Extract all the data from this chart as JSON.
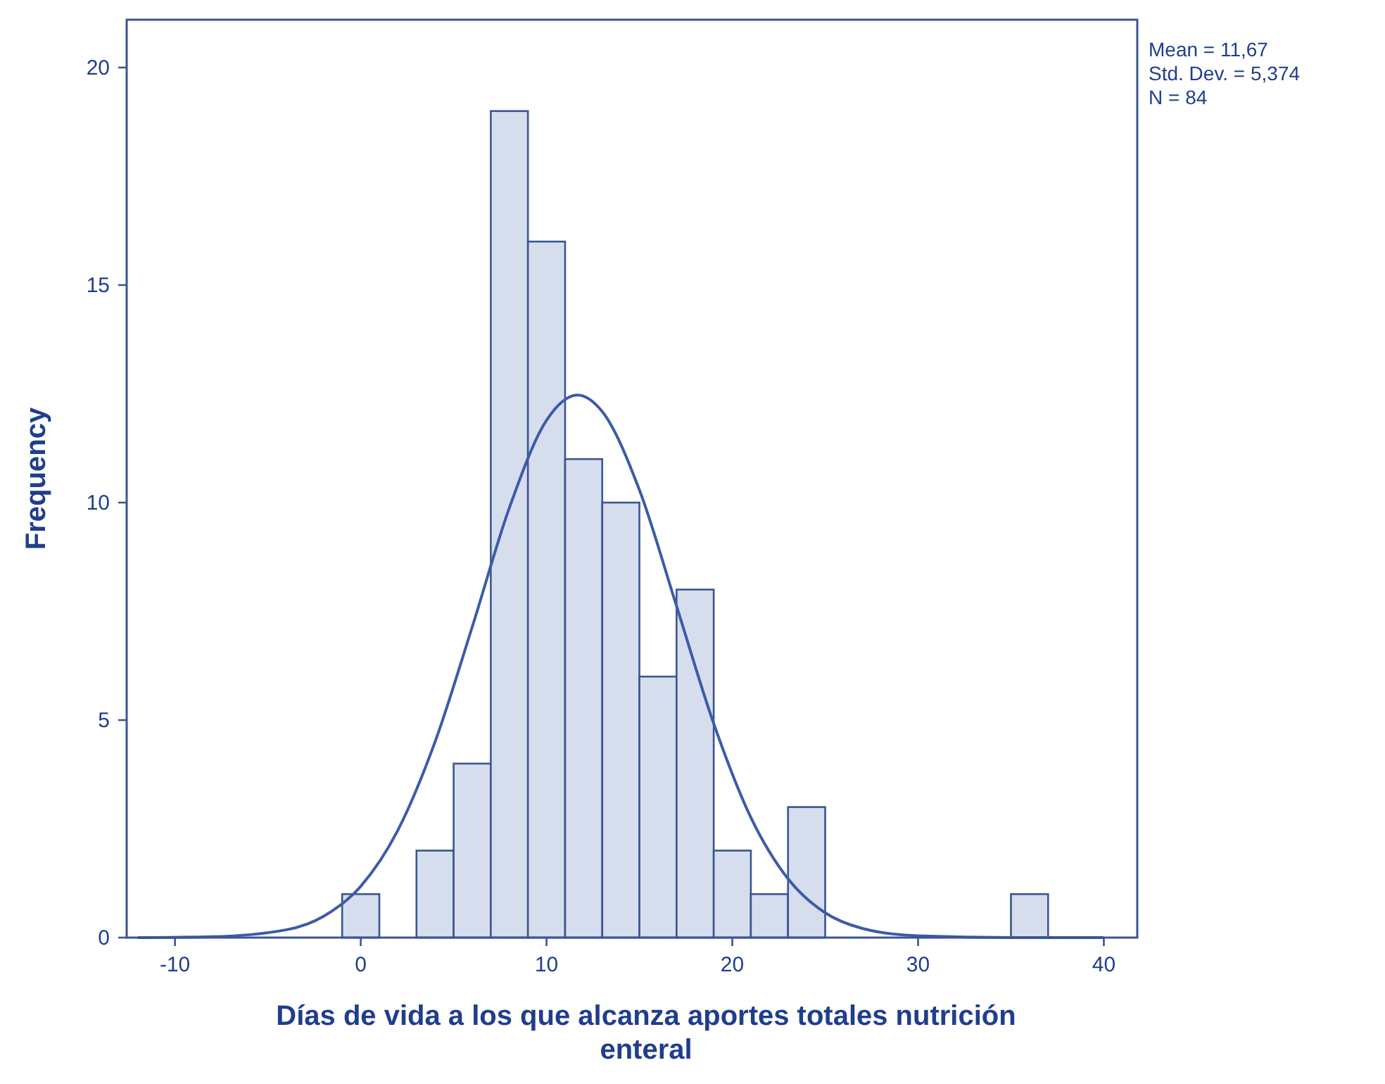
{
  "chart_data": {
    "type": "histogram",
    "xlabel": "Días de vida a los que alcanza aportes totales nutrición enteral",
    "ylabel": "Frequency",
    "annotations": [
      "Mean = 11,67",
      "Std. Dev. = 5,374",
      "N = 84"
    ],
    "bins": [
      -1,
      1,
      3,
      5,
      7,
      9,
      11,
      13,
      15,
      17,
      19,
      21,
      23,
      25,
      27,
      29,
      31,
      33,
      35,
      37
    ],
    "series": [
      {
        "color": "#d6deee",
        "values": [
          1,
          0,
          2,
          4,
          19,
          16,
          11,
          10,
          6,
          8,
          2,
          1,
          3,
          0,
          0,
          0,
          0,
          0,
          1
        ]
      },
      {
        "type": "line",
        "color": "#3d5ba6",
        "x": [
          -12,
          -8,
          -4,
          -2,
          0,
          2,
          4,
          6,
          8,
          10,
          11.67,
          13,
          15,
          17,
          19,
          21,
          23,
          25,
          27,
          30,
          35,
          40
        ],
        "values": [
          0,
          0.02,
          0.18,
          0.49,
          1.18,
          2.47,
          4.5,
          7.14,
          9.88,
          11.89,
          12.47,
          12.09,
          10.29,
          7.62,
          4.92,
          2.76,
          1.35,
          0.57,
          0.21,
          0.04,
          0,
          0
        ]
      }
    ],
    "xlim": [
      -12.6,
      41.8
    ],
    "ylim": [
      0,
      21.1
    ],
    "xticks": [
      -10,
      0,
      10,
      20,
      30,
      40
    ],
    "yticks": [
      0,
      5,
      10,
      15,
      20
    ],
    "grid": false,
    "marker": "none",
    "line_style": "solid"
  }
}
